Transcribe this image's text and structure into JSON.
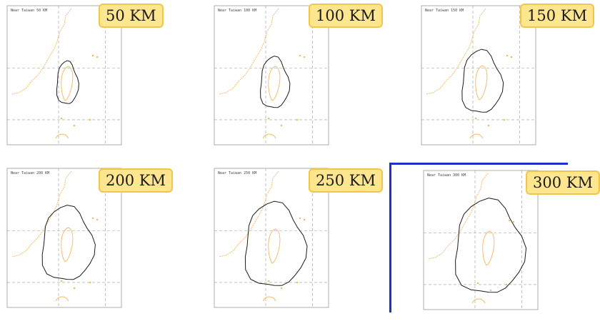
{
  "selected_index": 5,
  "colors": {
    "coast": "#f4b860",
    "contour": "#1a1a1a",
    "badge_fill": "#fde68e",
    "badge_border": "#f2c64d",
    "selection": "#1f2fc9"
  },
  "panels": [
    {
      "badge": "50 KM",
      "map_title": "Near Taiwan 50 KM"
    },
    {
      "badge": "100 KM",
      "map_title": "Near Taiwan 100 KM"
    },
    {
      "badge": "150 KM",
      "map_title": "Near Taiwan 150 KM"
    },
    {
      "badge": "200 KM",
      "map_title": "Near Taiwan 200 KM"
    },
    {
      "badge": "250 KM",
      "map_title": "Near Taiwan 250 KM"
    },
    {
      "badge": "300 KM",
      "map_title": "Near Taiwan 300 KM"
    }
  ]
}
